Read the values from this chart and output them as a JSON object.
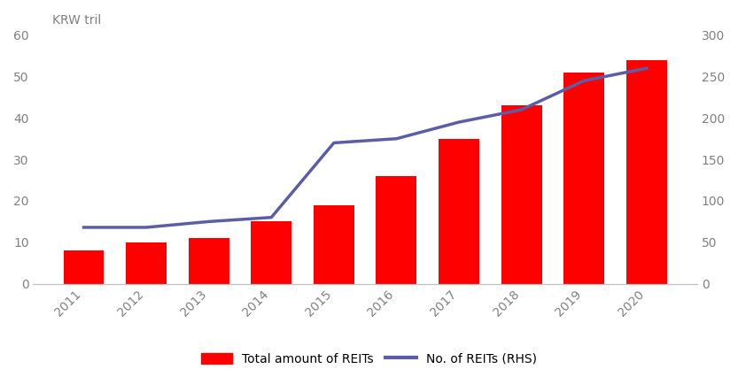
{
  "years": [
    2011,
    2012,
    2013,
    2014,
    2015,
    2016,
    2017,
    2018,
    2019,
    2020
  ],
  "bar_values": [
    8,
    10,
    11,
    15,
    19,
    26,
    35,
    43,
    51,
    54
  ],
  "line_values": [
    68,
    68,
    75,
    80,
    170,
    175,
    195,
    210,
    245,
    260
  ],
  "bar_color": "#ff0000",
  "line_color": "#5b5ea6",
  "ylabel_left": "KRW tril",
  "ylim_left": [
    0,
    60
  ],
  "ylim_right": [
    0,
    300
  ],
  "yticks_left": [
    0,
    10,
    20,
    30,
    40,
    50,
    60
  ],
  "yticks_right": [
    0,
    50,
    100,
    150,
    200,
    250,
    300
  ],
  "background_color": "#ffffff",
  "legend_bar_label": "Total amount of REITs",
  "legend_line_label": "No. of REITs (RHS)",
  "tick_color": "#808080",
  "axis_color": "#c0c0c0",
  "line_color_legend": "#5b5ea6",
  "line_width": 2.5,
  "bar_width": 0.65,
  "figsize": [
    8.33,
    4.17
  ],
  "dpi": 100
}
